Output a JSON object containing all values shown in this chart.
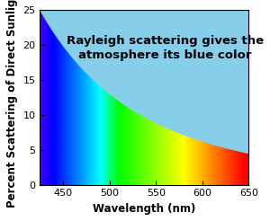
{
  "xmin": 425,
  "xmax": 650,
  "ymin": 0,
  "ymax": 25,
  "xlabel": "Wavelength (nm)",
  "ylabel": "Percent Scattering of Direct Sunlight",
  "title_line1": "Rayleigh scattering gives the",
  "title_line2": "atmosphere its blue color",
  "title_fontsize": 9.5,
  "axis_label_fontsize": 8.5,
  "tick_fontsize": 8,
  "cyan_color": "#87CEEB",
  "curve_power": 4,
  "xticks": [
    450,
    500,
    550,
    600,
    650
  ],
  "yticks": [
    0,
    5,
    10,
    15,
    20,
    25
  ],
  "figsize": [
    3.0,
    2.46
  ],
  "dpi": 100
}
